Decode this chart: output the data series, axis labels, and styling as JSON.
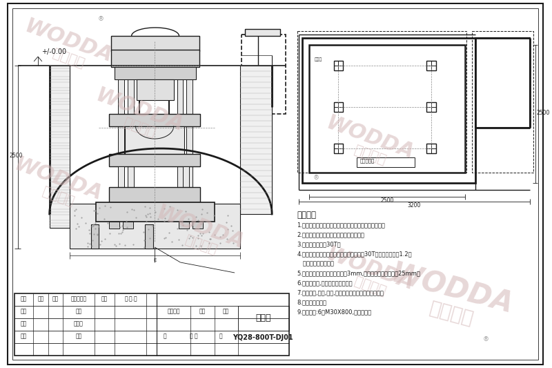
{
  "bg_color": "#ffffff",
  "lc": "#1a1a1a",
  "wm_color": "#d4b8b8",
  "tech_title": "技术要求",
  "tech_items": [
    "1.本地基图仅作土建部门设计任务书，不作地基施工图。",
    "2.本图仅供设计机器地基及机器安装参考。",
    "3.基础承受静载约30T。",
    "4.请用户根据本地的地质情况，技术受静载30T动载系数不小于1.2设",
    "   计基础的承载能力。",
    "5.地基平面水平误差全长不大于3mm,预留孔位置误差不大于25mm。",
    "6.电器控制箱,电源线路现场布置。",
    "7.主机地坑,照明,通风,防潮及排水设施用户自行考虑。",
    "8.操作位置如图。",
    "9.地脚螺栓:6支M30X800,用户自备。"
  ]
}
